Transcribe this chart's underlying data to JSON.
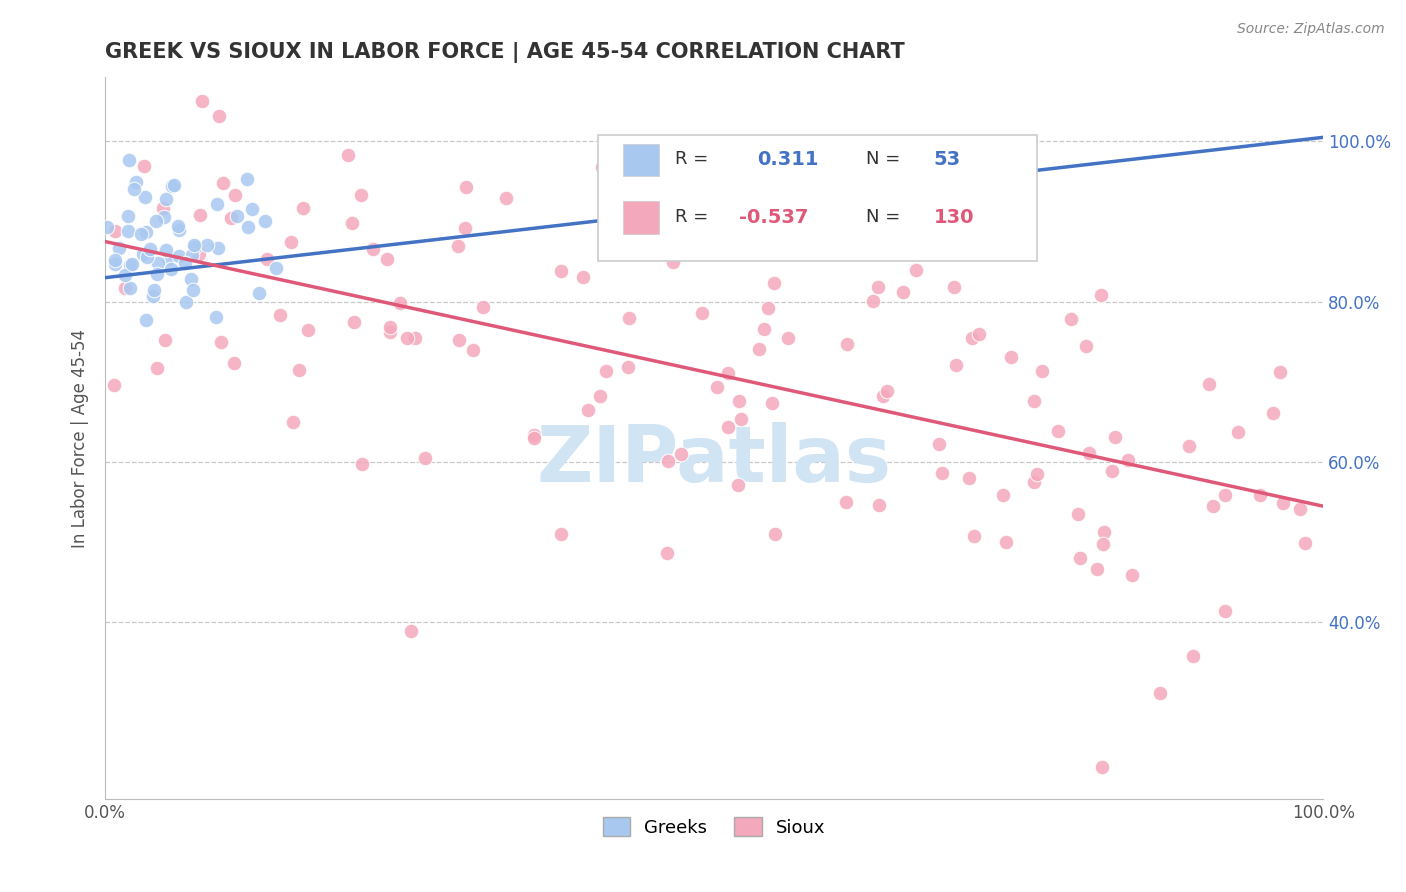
{
  "title": "GREEK VS SIOUX IN LABOR FORCE | AGE 45-54 CORRELATION CHART",
  "source_text": "Source: ZipAtlas.com",
  "ylabel": "In Labor Force | Age 45-54",
  "xlim": [
    0.0,
    1.0
  ],
  "ylim": [
    0.18,
    1.08
  ],
  "xticks": [
    0.0,
    0.1,
    0.2,
    0.3,
    0.4,
    0.5,
    0.6,
    0.7,
    0.8,
    0.9,
    1.0
  ],
  "xticklabels": [
    "0.0%",
    "",
    "",
    "",
    "",
    "",
    "",
    "",
    "",
    "",
    "100.0%"
  ],
  "ytick_positions": [
    0.4,
    0.6,
    0.8,
    1.0
  ],
  "ytick_labels": [
    "40.0%",
    "60.0%",
    "80.0%",
    "100.0%"
  ],
  "greek_R": 0.311,
  "greek_N": 53,
  "sioux_R": -0.537,
  "sioux_N": 130,
  "greek_color": "#a8c8f0",
  "sioux_color": "#f4a8bc",
  "greek_line_color": "#4472c4",
  "sioux_line_color": "#e05878",
  "ytick_color": "#4472c4",
  "background_color": "#ffffff",
  "grid_color": "#c8c8c8",
  "title_color": "#333333",
  "watermark_color": "#d0e4f4",
  "legend_greek_r_color": "#4472c4",
  "legend_sioux_r_color": "#e05878"
}
